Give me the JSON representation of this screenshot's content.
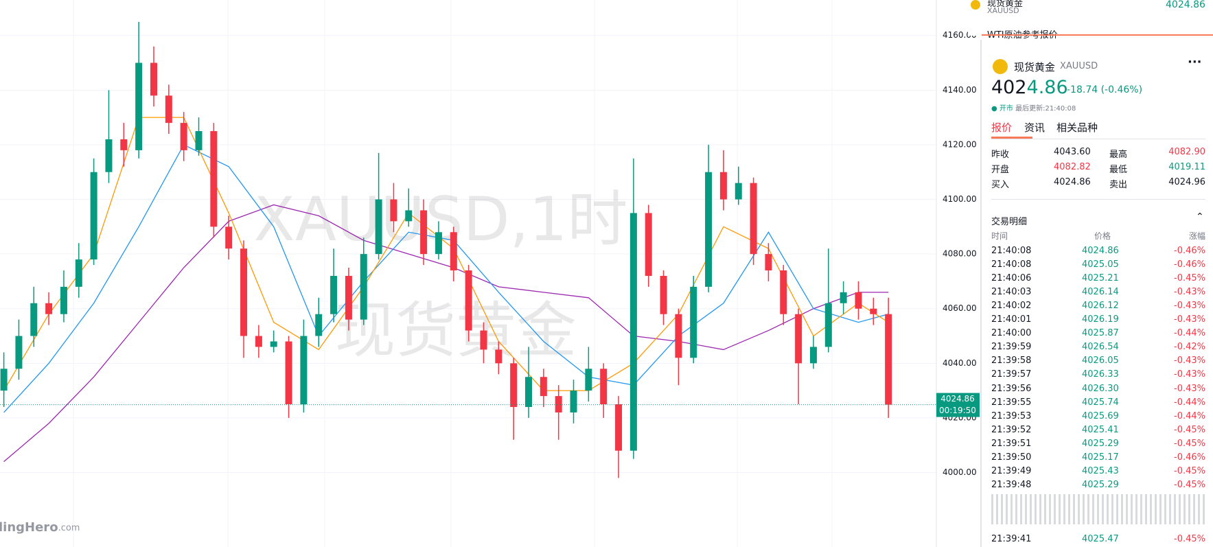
{
  "chart_data": {
    "type": "candlestick",
    "title": "XAUUSD,1时",
    "subtitle": "现货黄金",
    "ylim": [
      3975,
      4173
    ],
    "yticks": [
      {
        "value": 4000,
        "label": "4000.00"
      },
      {
        "value": 4020,
        "label": "4020.00"
      },
      {
        "value": 4040,
        "label": "4040.00"
      },
      {
        "value": 4060,
        "label": "4060.00"
      },
      {
        "value": 4080,
        "label": "4080.00"
      },
      {
        "value": 4100,
        "label": "4100.00"
      },
      {
        "value": 4120,
        "label": "4120.00"
      },
      {
        "value": 4140,
        "label": "4140.00"
      },
      {
        "value": 4160,
        "label": "4160.00"
      }
    ],
    "grid": true,
    "up_color": "#089981",
    "down_color": "#f23645",
    "open": [
      4030,
      4038,
      4050,
      4062,
      4058,
      4068,
      4078,
      4110,
      4122,
      4118,
      4150,
      4138,
      4128,
      4118,
      4125,
      4090,
      4082,
      4050,
      4046,
      4048,
      4025,
      4050,
      4058,
      4072,
      4056,
      4080,
      4100,
      4092,
      4096,
      4080,
      4088,
      4074,
      4052,
      4045,
      4040,
      4024,
      4035,
      4028,
      4022,
      4030,
      4038,
      4025,
      4008,
      4095,
      4072,
      4058,
      4042,
      4068,
      4110,
      4100,
      4106,
      4080,
      4074,
      4058,
      4040,
      4046,
      4062,
      4066,
      4060,
      4058
    ],
    "high": [
      4044,
      4056,
      4068,
      4066,
      4074,
      4084,
      4115,
      4140,
      4128,
      4165,
      4156,
      4142,
      4132,
      4130,
      4128,
      4094,
      4085,
      4054,
      4052,
      4050,
      4056,
      4064,
      4082,
      4075,
      4086,
      4117,
      4106,
      4104,
      4100,
      4092,
      4090,
      4076,
      4055,
      4048,
      4042,
      4046,
      4038,
      4032,
      4034,
      4046,
      4040,
      4028,
      4115,
      4098,
      4074,
      4060,
      4072,
      4120,
      4118,
      4112,
      4108,
      4084,
      4076,
      4060,
      4050,
      4082,
      4070,
      4070,
      4064,
      4064
    ],
    "low": [
      4024,
      4034,
      4046,
      4054,
      4055,
      4064,
      4076,
      4106,
      4112,
      4115,
      4134,
      4124,
      4114,
      4116,
      4086,
      4078,
      4042,
      4042,
      4044,
      4020,
      4022,
      4046,
      4055,
      4052,
      4054,
      4078,
      4088,
      4090,
      4076,
      4078,
      4070,
      4048,
      4040,
      4036,
      4012,
      4020,
      4024,
      4012,
      4018,
      4026,
      4020,
      3998,
      4005,
      4068,
      4054,
      4032,
      4040,
      4066,
      4096,
      4098,
      4076,
      4070,
      4054,
      4025,
      4038,
      4044,
      4058,
      4056,
      4054,
      4020
    ],
    "close": [
      4038,
      4050,
      4062,
      4058,
      4068,
      4078,
      4110,
      4122,
      4118,
      4150,
      4138,
      4128,
      4118,
      4125,
      4090,
      4082,
      4050,
      4046,
      4048,
      4025,
      4050,
      4058,
      4072,
      4056,
      4080,
      4100,
      4092,
      4096,
      4080,
      4088,
      4074,
      4052,
      4045,
      4040,
      4024,
      4035,
      4028,
      4022,
      4030,
      4038,
      4025,
      4008,
      4095,
      4072,
      4058,
      4042,
      4068,
      4110,
      4100,
      4106,
      4080,
      4074,
      4058,
      4040,
      4046,
      4062,
      4066,
      4060,
      4058,
      4024.86
    ],
    "lines": [
      {
        "color": "#9c27b0",
        "x": [
          0,
          3,
          6,
          9,
          12,
          15,
          18,
          21,
          24,
          27,
          30,
          33,
          36,
          39,
          42,
          45,
          48,
          51,
          54,
          57,
          59
        ],
        "values": [
          4004,
          4018,
          4035,
          4055,
          4075,
          4092,
          4098,
          4094,
          4085,
          4080,
          4075,
          4068,
          4066,
          4064,
          4050,
          4048,
          4045,
          4052,
          4060,
          4066,
          4066
        ]
      },
      {
        "color": "#2196f3",
        "x": [
          0,
          3,
          6,
          9,
          12,
          15,
          18,
          21,
          24,
          27,
          30,
          33,
          36,
          39,
          42,
          45,
          48,
          51,
          54,
          57,
          59
        ],
        "values": [
          4022,
          4040,
          4062,
          4090,
          4120,
          4112,
          4090,
          4050,
          4070,
          4088,
          4085,
          4066,
          4048,
          4035,
          4032,
          4050,
          4062,
          4088,
          4060,
          4055,
          4058
        ]
      },
      {
        "color": "#ff9800",
        "x": [
          0,
          3,
          6,
          9,
          12,
          15,
          18,
          21,
          24,
          27,
          30,
          33,
          36,
          39,
          42,
          45,
          48,
          51,
          54,
          57,
          59
        ],
        "values": [
          4030,
          4058,
          4080,
          4130,
          4130,
          4095,
          4055,
          4045,
          4068,
          4095,
          4082,
          4048,
          4030,
          4030,
          4040,
          4058,
          4090,
          4082,
          4050,
          4062,
          4055
        ]
      }
    ],
    "last_price": 4024.86,
    "countdown": "00:19:50"
  },
  "logo": "lingHero",
  "logo_suffix": ".com",
  "watchlist": [
    {
      "name": "现货黄金",
      "code": "XAUUSD",
      "price": "4024.86"
    },
    {
      "name": "WTI原油参考报价"
    }
  ],
  "panel": {
    "name": "现货黄金",
    "code": "XAUUSD",
    "price_int": "402",
    "price_dec": "4.86",
    "change": "-18.74 (-0.46%)",
    "status": "开市",
    "updated": "最后更新:21:40:08",
    "tabs": [
      "报价",
      "资讯",
      "相关品种"
    ],
    "stats": [
      [
        "昨收",
        "4043.60",
        "最高",
        "4082.90"
      ],
      [
        "开盘",
        "4082.82",
        "最低",
        "4019.11"
      ],
      [
        "买入",
        "4024.86",
        "卖出",
        "4024.96"
      ]
    ],
    "trades_title": "交易明细",
    "headers": [
      "时间",
      "价格",
      "涨幅"
    ],
    "rows": [
      [
        "21:40:08",
        "4024.86",
        "-0.46%"
      ],
      [
        "21:40:08",
        "4025.05",
        "-0.46%"
      ],
      [
        "21:40:06",
        "4025.21",
        "-0.45%"
      ],
      [
        "21:40:03",
        "4026.14",
        "-0.43%"
      ],
      [
        "21:40:02",
        "4026.12",
        "-0.43%"
      ],
      [
        "21:40:01",
        "4026.19",
        "-0.43%"
      ],
      [
        "21:40:00",
        "4025.87",
        "-0.44%"
      ],
      [
        "21:39:59",
        "4026.54",
        "-0.42%"
      ],
      [
        "21:39:58",
        "4026.05",
        "-0.43%"
      ],
      [
        "21:39:57",
        "4026.33",
        "-0.43%"
      ],
      [
        "21:39:56",
        "4026.30",
        "-0.43%"
      ],
      [
        "21:39:55",
        "4025.74",
        "-0.44%"
      ],
      [
        "21:39:53",
        "4025.69",
        "-0.44%"
      ],
      [
        "21:39:52",
        "4025.41",
        "-0.45%"
      ],
      [
        "21:39:51",
        "4025.29",
        "-0.45%"
      ],
      [
        "21:39:50",
        "4025.17",
        "-0.46%"
      ],
      [
        "21:39:49",
        "4025.43",
        "-0.45%"
      ],
      [
        "21:39:48",
        "4025.29",
        "-0.45%"
      ]
    ],
    "last_row": [
      "21:39:41",
      "4025.47",
      "-0.45%"
    ]
  }
}
